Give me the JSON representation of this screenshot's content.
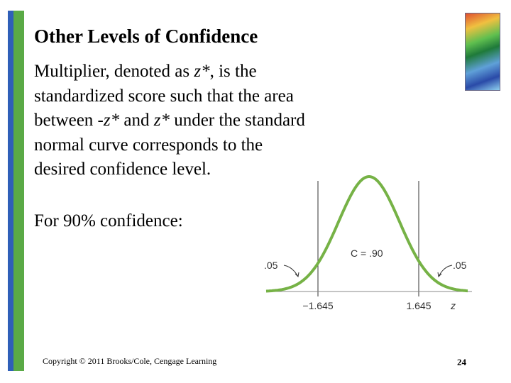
{
  "slide": {
    "title": "Other Levels of Confidence",
    "body": [
      "Multiplier, denoted as ",
      "z*",
      ", is the standardized score such that the area between -",
      "z*",
      " and ",
      "z*",
      " under the standard normal curve corresponds to the desired confidence level."
    ],
    "prompt": "For 90% confidence:",
    "figure": {
      "left_tail": ".05",
      "center": "C = .90",
      "right_tail": ".05",
      "left_cutoff": "−1.645",
      "right_cutoff": "1.645",
      "axis": "z"
    },
    "footer": {
      "copyright": "Copyright © 2011 Brooks/Cole, Cengage Learning",
      "page": "24"
    }
  }
}
